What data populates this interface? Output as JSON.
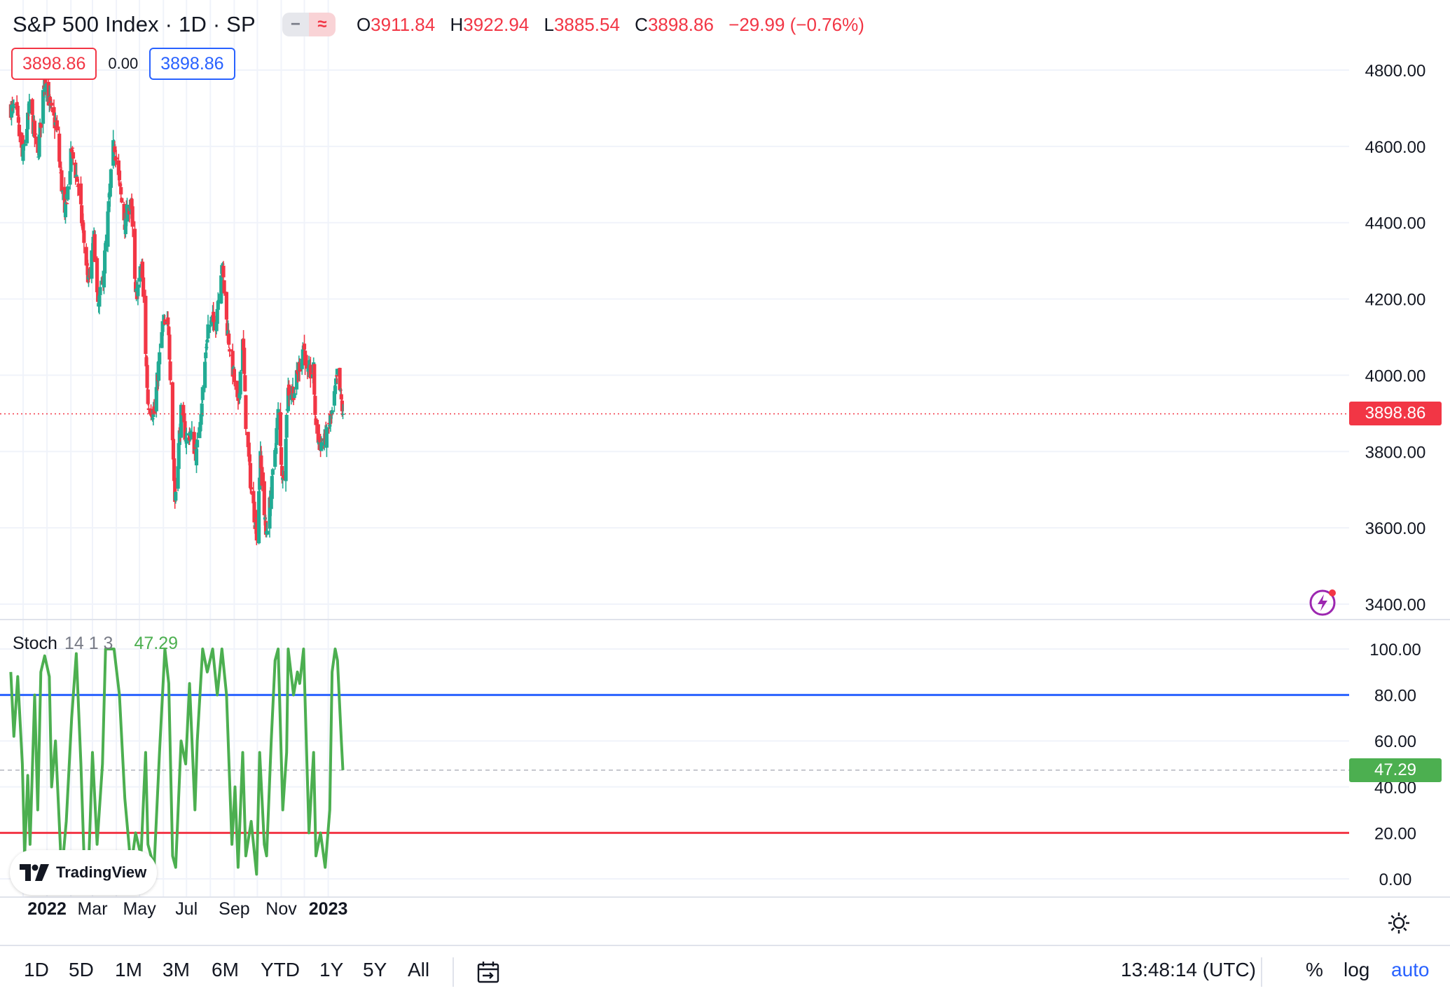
{
  "header": {
    "symbol_title": "S&P 500 Index · 1D · SP",
    "ohlc": {
      "o_label": "O",
      "o": "3911.84",
      "h_label": "H",
      "h": "3922.94",
      "l_label": "L",
      "l": "3885.54",
      "c_label": "C",
      "c": "3898.86",
      "change": "−29.99 (−0.76%)"
    },
    "price_box_left": "3898.86",
    "price_box_mid": "0.00",
    "price_box_right": "3898.86"
  },
  "stoch_legend": {
    "name": "Stoch",
    "params": "14 1 3",
    "value": "47.29"
  },
  "branding": {
    "logo_text": "TradingView"
  },
  "colors": {
    "up": "#22ab94",
    "down": "#f23645",
    "stoch": "#4caf50",
    "upper_band": "#2962ff",
    "lower_band": "#f23645",
    "accent": "#2962ff"
  },
  "toolbar": {
    "ranges": [
      "1D",
      "5D",
      "1M",
      "3M",
      "6M",
      "YTD",
      "1Y",
      "5Y",
      "All"
    ],
    "clock": "13:48:14 (UTC)",
    "percent": "%",
    "log": "log",
    "auto": "auto"
  },
  "chart_data": [
    {
      "type": "candlestick",
      "title": "S&P 500 Index · 1D · SP",
      "ylim": [
        3400,
        4800
      ],
      "y_ticks": [
        "4800.00",
        "4600.00",
        "4400.00",
        "4200.00",
        "4000.00",
        "3800.00",
        "3600.00",
        "3400.00"
      ],
      "x_ticks": [
        "2022",
        "Mar",
        "May",
        "Jul",
        "Sep",
        "Nov",
        "2023"
      ],
      "last_price": "3898.86",
      "close_path": [
        {
          "date": "2021-11-15",
          "close": 4700
        },
        {
          "date": "2021-11-22",
          "close": 4690
        },
        {
          "date": "2021-11-30",
          "close": 4570
        },
        {
          "date": "2021-12-10",
          "close": 4710
        },
        {
          "date": "2021-12-20",
          "close": 4570
        },
        {
          "date": "2021-12-29",
          "close": 4790
        },
        {
          "date": "2022-01-05",
          "close": 4700
        },
        {
          "date": "2022-01-13",
          "close": 4650
        },
        {
          "date": "2022-01-24",
          "close": 4410
        },
        {
          "date": "2022-02-02",
          "close": 4590
        },
        {
          "date": "2022-02-10",
          "close": 4500
        },
        {
          "date": "2022-02-18",
          "close": 4350
        },
        {
          "date": "2022-02-24",
          "close": 4240
        },
        {
          "date": "2022-03-03",
          "close": 4360
        },
        {
          "date": "2022-03-08",
          "close": 4170
        },
        {
          "date": "2022-03-15",
          "close": 4260
        },
        {
          "date": "2022-03-29",
          "close": 4620
        },
        {
          "date": "2022-04-06",
          "close": 4480
        },
        {
          "date": "2022-04-12",
          "close": 4400
        },
        {
          "date": "2022-04-20",
          "close": 4460
        },
        {
          "date": "2022-04-26",
          "close": 4200
        },
        {
          "date": "2022-05-04",
          "close": 4290
        },
        {
          "date": "2022-05-12",
          "close": 3930
        },
        {
          "date": "2022-05-20",
          "close": 3900
        },
        {
          "date": "2022-05-31",
          "close": 4130
        },
        {
          "date": "2022-06-08",
          "close": 4120
        },
        {
          "date": "2022-06-16",
          "close": 3670
        },
        {
          "date": "2022-06-24",
          "close": 3900
        },
        {
          "date": "2022-07-01",
          "close": 3830
        },
        {
          "date": "2022-07-06",
          "close": 3850
        },
        {
          "date": "2022-07-14",
          "close": 3790
        },
        {
          "date": "2022-07-22",
          "close": 3960
        },
        {
          "date": "2022-07-29",
          "close": 4130
        },
        {
          "date": "2022-08-08",
          "close": 4140
        },
        {
          "date": "2022-08-16",
          "close": 4300
        },
        {
          "date": "2022-08-22",
          "close": 4140
        },
        {
          "date": "2022-08-29",
          "close": 4030
        },
        {
          "date": "2022-09-06",
          "close": 3910
        },
        {
          "date": "2022-09-12",
          "close": 4110
        },
        {
          "date": "2022-09-16",
          "close": 3880
        },
        {
          "date": "2022-09-23",
          "close": 3700
        },
        {
          "date": "2022-09-30",
          "close": 3590
        },
        {
          "date": "2022-10-05",
          "close": 3780
        },
        {
          "date": "2022-10-12",
          "close": 3580
        },
        {
          "date": "2022-10-19",
          "close": 3690
        },
        {
          "date": "2022-10-28",
          "close": 3900
        },
        {
          "date": "2022-11-03",
          "close": 3720
        },
        {
          "date": "2022-11-10",
          "close": 3960
        },
        {
          "date": "2022-11-18",
          "close": 3960
        },
        {
          "date": "2022-11-30",
          "close": 4080
        },
        {
          "date": "2022-12-05",
          "close": 4000
        },
        {
          "date": "2022-12-13",
          "close": 4010
        },
        {
          "date": "2022-12-16",
          "close": 3850
        },
        {
          "date": "2022-12-22",
          "close": 3820
        },
        {
          "date": "2022-12-30",
          "close": 3840
        },
        {
          "date": "2023-01-06",
          "close": 3900
        },
        {
          "date": "2023-01-13",
          "close": 4000
        },
        {
          "date": "2023-01-18",
          "close": 3930
        },
        {
          "date": "2023-01-20",
          "close": 3898.86
        }
      ]
    },
    {
      "type": "line",
      "title": "Stoch 14 1 3",
      "ylim": [
        0,
        100
      ],
      "y_ticks": [
        "100.00",
        "80.00",
        "60.00",
        "40.00",
        "20.00",
        "0.00"
      ],
      "bands": {
        "upper": 80,
        "lower": 20,
        "mid": 50
      },
      "last_value": "47.29",
      "series": [
        {
          "points": [
            {
              "date": "2021-11-15",
              "value": 90
            },
            {
              "date": "2021-11-19",
              "value": 62
            },
            {
              "date": "2021-11-24",
              "value": 88
            },
            {
              "date": "2021-11-30",
              "value": 50
            },
            {
              "date": "2021-12-03",
              "value": 10
            },
            {
              "date": "2021-12-07",
              "value": 45
            },
            {
              "date": "2021-12-10",
              "value": 15
            },
            {
              "date": "2021-12-16",
              "value": 80
            },
            {
              "date": "2021-12-20",
              "value": 30
            },
            {
              "date": "2021-12-24",
              "value": 90
            },
            {
              "date": "2021-12-29",
              "value": 97
            },
            {
              "date": "2022-01-04",
              "value": 88
            },
            {
              "date": "2022-01-07",
              "value": 40
            },
            {
              "date": "2022-01-12",
              "value": 60
            },
            {
              "date": "2022-01-20",
              "value": 2
            },
            {
              "date": "2022-01-26",
              "value": 25
            },
            {
              "date": "2022-02-02",
              "value": 70
            },
            {
              "date": "2022-02-08",
              "value": 98
            },
            {
              "date": "2022-02-14",
              "value": 50
            },
            {
              "date": "2022-02-18",
              "value": 10
            },
            {
              "date": "2022-02-24",
              "value": 5
            },
            {
              "date": "2022-03-01",
              "value": 55
            },
            {
              "date": "2022-03-07",
              "value": 15
            },
            {
              "date": "2022-03-14",
              "value": 50
            },
            {
              "date": "2022-03-18",
              "value": 100
            },
            {
              "date": "2022-03-29",
              "value": 100
            },
            {
              "date": "2022-04-05",
              "value": 80
            },
            {
              "date": "2022-04-12",
              "value": 35
            },
            {
              "date": "2022-04-20",
              "value": 5
            },
            {
              "date": "2022-04-26",
              "value": 20
            },
            {
              "date": "2022-05-03",
              "value": 10
            },
            {
              "date": "2022-05-09",
              "value": 55
            },
            {
              "date": "2022-05-12",
              "value": 15
            },
            {
              "date": "2022-05-20",
              "value": 5
            },
            {
              "date": "2022-05-27",
              "value": 55
            },
            {
              "date": "2022-06-03",
              "value": 100
            },
            {
              "date": "2022-06-08",
              "value": 85
            },
            {
              "date": "2022-06-13",
              "value": 10
            },
            {
              "date": "2022-06-17",
              "value": 5
            },
            {
              "date": "2022-06-24",
              "value": 60
            },
            {
              "date": "2022-06-30",
              "value": 50
            },
            {
              "date": "2022-07-05",
              "value": 85
            },
            {
              "date": "2022-07-12",
              "value": 30
            },
            {
              "date": "2022-07-15",
              "value": 60
            },
            {
              "date": "2022-07-22",
              "value": 100
            },
            {
              "date": "2022-07-28",
              "value": 90
            },
            {
              "date": "2022-08-04",
              "value": 100
            },
            {
              "date": "2022-08-10",
              "value": 80
            },
            {
              "date": "2022-08-16",
              "value": 100
            },
            {
              "date": "2022-08-22",
              "value": 80
            },
            {
              "date": "2022-08-29",
              "value": 15
            },
            {
              "date": "2022-09-02",
              "value": 40
            },
            {
              "date": "2022-09-06",
              "value": 5
            },
            {
              "date": "2022-09-12",
              "value": 55
            },
            {
              "date": "2022-09-16",
              "value": 10
            },
            {
              "date": "2022-09-23",
              "value": 25
            },
            {
              "date": "2022-09-30",
              "value": 2
            },
            {
              "date": "2022-10-04",
              "value": 55
            },
            {
              "date": "2022-10-10",
              "value": 15
            },
            {
              "date": "2022-10-13",
              "value": 10
            },
            {
              "date": "2022-10-19",
              "value": 60
            },
            {
              "date": "2022-10-24",
              "value": 95
            },
            {
              "date": "2022-10-28",
              "value": 100
            },
            {
              "date": "2022-11-03",
              "value": 30
            },
            {
              "date": "2022-11-08",
              "value": 55
            },
            {
              "date": "2022-11-10",
              "value": 100
            },
            {
              "date": "2022-11-17",
              "value": 80
            },
            {
              "date": "2022-11-22",
              "value": 90
            },
            {
              "date": "2022-11-25",
              "value": 85
            },
            {
              "date": "2022-11-30",
              "value": 100
            },
            {
              "date": "2022-12-07",
              "value": 20
            },
            {
              "date": "2022-12-13",
              "value": 55
            },
            {
              "date": "2022-12-16",
              "value": 10
            },
            {
              "date": "2022-12-22",
              "value": 20
            },
            {
              "date": "2022-12-28",
              "value": 5
            },
            {
              "date": "2023-01-03",
              "value": 30
            },
            {
              "date": "2023-01-06",
              "value": 90
            },
            {
              "date": "2023-01-10",
              "value": 100
            },
            {
              "date": "2023-01-13",
              "value": 95
            },
            {
              "date": "2023-01-18",
              "value": 60
            },
            {
              "date": "2023-01-20",
              "value": 47.29
            }
          ]
        }
      ]
    }
  ]
}
